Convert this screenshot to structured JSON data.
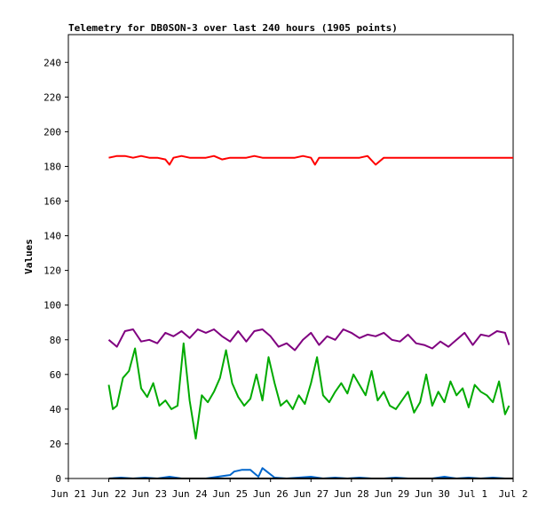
{
  "chart_data": {
    "type": "line",
    "title": "Telemetry for DB0SON-3 over last 240 hours (1905 points)",
    "xlabel": "",
    "ylabel": "Values",
    "ylim": [
      0,
      256
    ],
    "yticks": [
      0,
      20,
      40,
      60,
      80,
      100,
      120,
      140,
      160,
      180,
      200,
      220,
      240
    ],
    "x_range_days": [
      0,
      11
    ],
    "x_tick_labels": [
      "Jun 21",
      "Jun 22",
      "Jun 23",
      "Jun 24",
      "Jun 25",
      "Jun 26",
      "Jun 27",
      "Jun 28",
      "Jun 29",
      "Jun 30",
      "Jul 1",
      "Jul 2"
    ],
    "grid": false,
    "legend": "none",
    "series": [
      {
        "color": "#ff0000",
        "x": [
          1.0,
          1.2,
          1.4,
          1.6,
          1.8,
          2.0,
          2.2,
          2.4,
          2.5,
          2.6,
          2.8,
          3.0,
          3.2,
          3.4,
          3.6,
          3.8,
          4.0,
          4.2,
          4.4,
          4.6,
          4.8,
          5.0,
          5.2,
          5.4,
          5.6,
          5.8,
          6.0,
          6.1,
          6.2,
          6.4,
          6.6,
          6.8,
          7.0,
          7.2,
          7.4,
          7.6,
          7.8,
          8.0,
          8.2,
          8.4,
          8.6,
          8.8,
          9.0,
          9.2,
          9.4,
          9.6,
          9.8,
          10.0,
          10.2,
          10.4,
          10.6,
          10.8,
          11.0
        ],
        "values": [
          185,
          186,
          186,
          185,
          186,
          185,
          185,
          184,
          181,
          185,
          186,
          185,
          185,
          185,
          186,
          184,
          185,
          185,
          185,
          186,
          185,
          185,
          185,
          185,
          185,
          186,
          185,
          181,
          185,
          185,
          185,
          185,
          185,
          185,
          186,
          181,
          185,
          185,
          185,
          185,
          185,
          185,
          185,
          185,
          185,
          185,
          185,
          185,
          185,
          185,
          185,
          185,
          185
        ]
      },
      {
        "color": "#800080",
        "x": [
          1.0,
          1.2,
          1.4,
          1.6,
          1.8,
          2.0,
          2.2,
          2.4,
          2.6,
          2.8,
          3.0,
          3.2,
          3.4,
          3.6,
          3.8,
          4.0,
          4.2,
          4.4,
          4.6,
          4.8,
          5.0,
          5.2,
          5.4,
          5.6,
          5.8,
          6.0,
          6.2,
          6.4,
          6.6,
          6.8,
          7.0,
          7.2,
          7.4,
          7.6,
          7.8,
          8.0,
          8.2,
          8.4,
          8.6,
          8.8,
          9.0,
          9.2,
          9.4,
          9.6,
          9.8,
          10.0,
          10.2,
          10.4,
          10.6,
          10.8,
          10.9
        ],
        "values": [
          80,
          76,
          85,
          86,
          79,
          80,
          78,
          84,
          82,
          85,
          81,
          86,
          84,
          86,
          82,
          79,
          85,
          79,
          85,
          86,
          82,
          76,
          78,
          74,
          80,
          84,
          77,
          82,
          80,
          86,
          84,
          81,
          83,
          82,
          84,
          80,
          79,
          83,
          78,
          77,
          75,
          79,
          76,
          80,
          84,
          77,
          83,
          82,
          85,
          84,
          77
        ]
      },
      {
        "color": "#00aa00",
        "x": [
          1.0,
          1.1,
          1.2,
          1.35,
          1.5,
          1.65,
          1.8,
          1.95,
          2.1,
          2.25,
          2.4,
          2.55,
          2.7,
          2.85,
          3.0,
          3.15,
          3.3,
          3.45,
          3.6,
          3.75,
          3.9,
          4.05,
          4.2,
          4.35,
          4.5,
          4.65,
          4.8,
          4.95,
          5.1,
          5.25,
          5.4,
          5.55,
          5.7,
          5.85,
          6.0,
          6.15,
          6.3,
          6.45,
          6.6,
          6.75,
          6.9,
          7.05,
          7.2,
          7.35,
          7.5,
          7.65,
          7.8,
          7.95,
          8.1,
          8.25,
          8.4,
          8.55,
          8.7,
          8.85,
          9.0,
          9.15,
          9.3,
          9.45,
          9.6,
          9.75,
          9.9,
          10.05,
          10.2,
          10.35,
          10.5,
          10.65,
          10.8,
          10.9
        ],
        "values": [
          54,
          40,
          42,
          58,
          62,
          75,
          52,
          47,
          55,
          42,
          45,
          40,
          42,
          78,
          45,
          23,
          48,
          44,
          50,
          58,
          74,
          55,
          47,
          42,
          46,
          60,
          45,
          70,
          55,
          42,
          45,
          40,
          48,
          43,
          55,
          70,
          48,
          44,
          50,
          55,
          49,
          60,
          54,
          48,
          62,
          45,
          50,
          42,
          40,
          45,
          50,
          38,
          44,
          60,
          42,
          50,
          44,
          56,
          48,
          52,
          41,
          54,
          50,
          48,
          44,
          56,
          37,
          42
        ]
      },
      {
        "color": "#0066cc",
        "x": [
          1.0,
          1.3,
          1.6,
          1.9,
          2.2,
          2.5,
          2.8,
          3.1,
          3.4,
          3.7,
          4.0,
          4.1,
          4.3,
          4.5,
          4.6,
          4.7,
          4.8,
          5.1,
          5.4,
          5.7,
          6.0,
          6.3,
          6.6,
          6.9,
          7.2,
          7.5,
          7.8,
          8.1,
          8.4,
          8.7,
          9.0,
          9.3,
          9.6,
          9.9,
          10.2,
          10.5,
          10.8,
          10.9
        ],
        "values": [
          0,
          0.5,
          0,
          0.5,
          0,
          1,
          0,
          0,
          0,
          1,
          2,
          4,
          5,
          5,
          3,
          1,
          6,
          0.5,
          0,
          0.5,
          1,
          0,
          0.5,
          0,
          0.5,
          0,
          0,
          0.5,
          0,
          0,
          0,
          1,
          0,
          0.5,
          0,
          0.5,
          0,
          0
        ]
      },
      {
        "color": "#000000",
        "x": [
          1.0,
          11.0
        ],
        "values": [
          0,
          0
        ]
      }
    ]
  }
}
